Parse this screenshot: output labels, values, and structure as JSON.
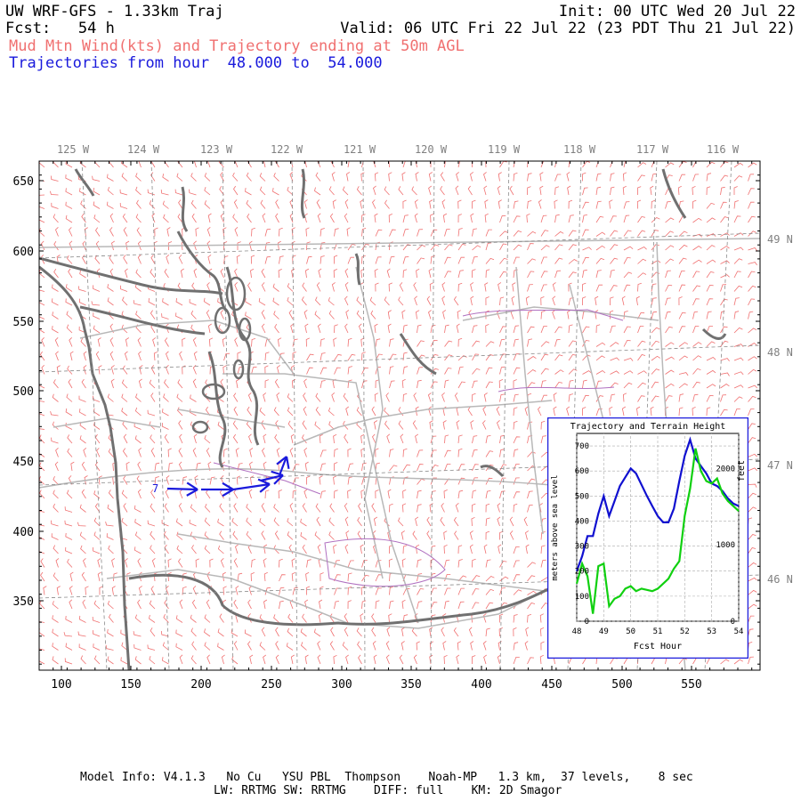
{
  "header": {
    "title": "UW WRF-GFS - 1.33km Traj",
    "init": "Init: 00 UTC Wed 20 Jul 22",
    "fcst": "Fcst:   54 h",
    "valid": "Valid: 06 UTC Fri 22 Jul 22 (23 PDT Thu 21 Jul 22)",
    "subtitle": "Mud Mtn Wind(kts) and Trajectory ending at 50m AGL",
    "traj_range": "Trajectories from hour  48.000 to  54.000"
  },
  "map": {
    "lon_labels": [
      "125 W",
      "124 W",
      "123 W",
      "122 W",
      "121 W",
      "120 W",
      "119 W",
      "118 W",
      "117 W",
      "116 W"
    ],
    "lat_labels": [
      "49 N",
      "48 N",
      "47 N",
      "46 N"
    ],
    "y_ticks": [
      "650",
      "600",
      "550",
      "500",
      "450",
      "400",
      "350"
    ],
    "x_ticks": [
      "100",
      "150",
      "200",
      "250",
      "300",
      "350",
      "400",
      "450",
      "500",
      "550"
    ],
    "trajectory_label": "7",
    "colors": {
      "wind": "#f07070",
      "coast": "#707070",
      "trajectory": "#1a1adc",
      "grid": "#9a9a9a"
    }
  },
  "inset": {
    "title": "Trajectory and Terrain Height",
    "ylabel_left": "meters above sea level",
    "ylabel_right": "feet",
    "xlabel": "Fcst Hour",
    "left_ticks": [
      "0",
      "100",
      "200",
      "300",
      "400",
      "500",
      "600",
      "700"
    ],
    "right_ticks": [
      "0",
      "1000",
      "2000"
    ],
    "x_ticks": [
      "48",
      "49",
      "50",
      "51",
      "52",
      "53",
      "54"
    ],
    "chart_data": {
      "type": "line",
      "x": [
        48.0,
        48.2,
        48.4,
        48.6,
        48.8,
        49.0,
        49.2,
        49.4,
        49.6,
        49.8,
        50.0,
        50.2,
        50.4,
        50.6,
        50.8,
        51.0,
        51.2,
        51.4,
        51.6,
        51.8,
        52.0,
        52.2,
        52.4,
        52.6,
        52.8,
        53.0,
        53.2,
        53.4,
        53.6,
        53.8,
        54.0
      ],
      "series": [
        {
          "color": "#1010d0",
          "values": [
            200,
            260,
            340,
            340,
            430,
            500,
            420,
            480,
            540,
            575,
            610,
            590,
            545,
            500,
            460,
            420,
            395,
            395,
            450,
            560,
            660,
            725,
            650,
            620,
            590,
            550,
            540,
            520,
            490,
            470,
            460
          ]
        },
        {
          "color": "#10d010",
          "values": [
            150,
            230,
            180,
            30,
            220,
            230,
            60,
            90,
            100,
            130,
            140,
            120,
            130,
            125,
            120,
            130,
            150,
            170,
            210,
            240,
            420,
            530,
            690,
            600,
            560,
            550,
            570,
            510,
            480,
            460,
            440
          ]
        }
      ],
      "xlim": [
        48,
        54
      ],
      "ylim": [
        0,
        750
      ],
      "xlabel": "Fcst Hour",
      "ylabel": "meters above sea level",
      "grid": true
    }
  },
  "footer": {
    "line1": "Model Info: V4.1.3   No Cu   YSU PBL  Thompson    Noah-MP   1.3 km,  37 levels,    8 sec",
    "line2": "LW: RRTMG SW: RRTMG    DIFF: full    KM: 2D Smagor"
  }
}
